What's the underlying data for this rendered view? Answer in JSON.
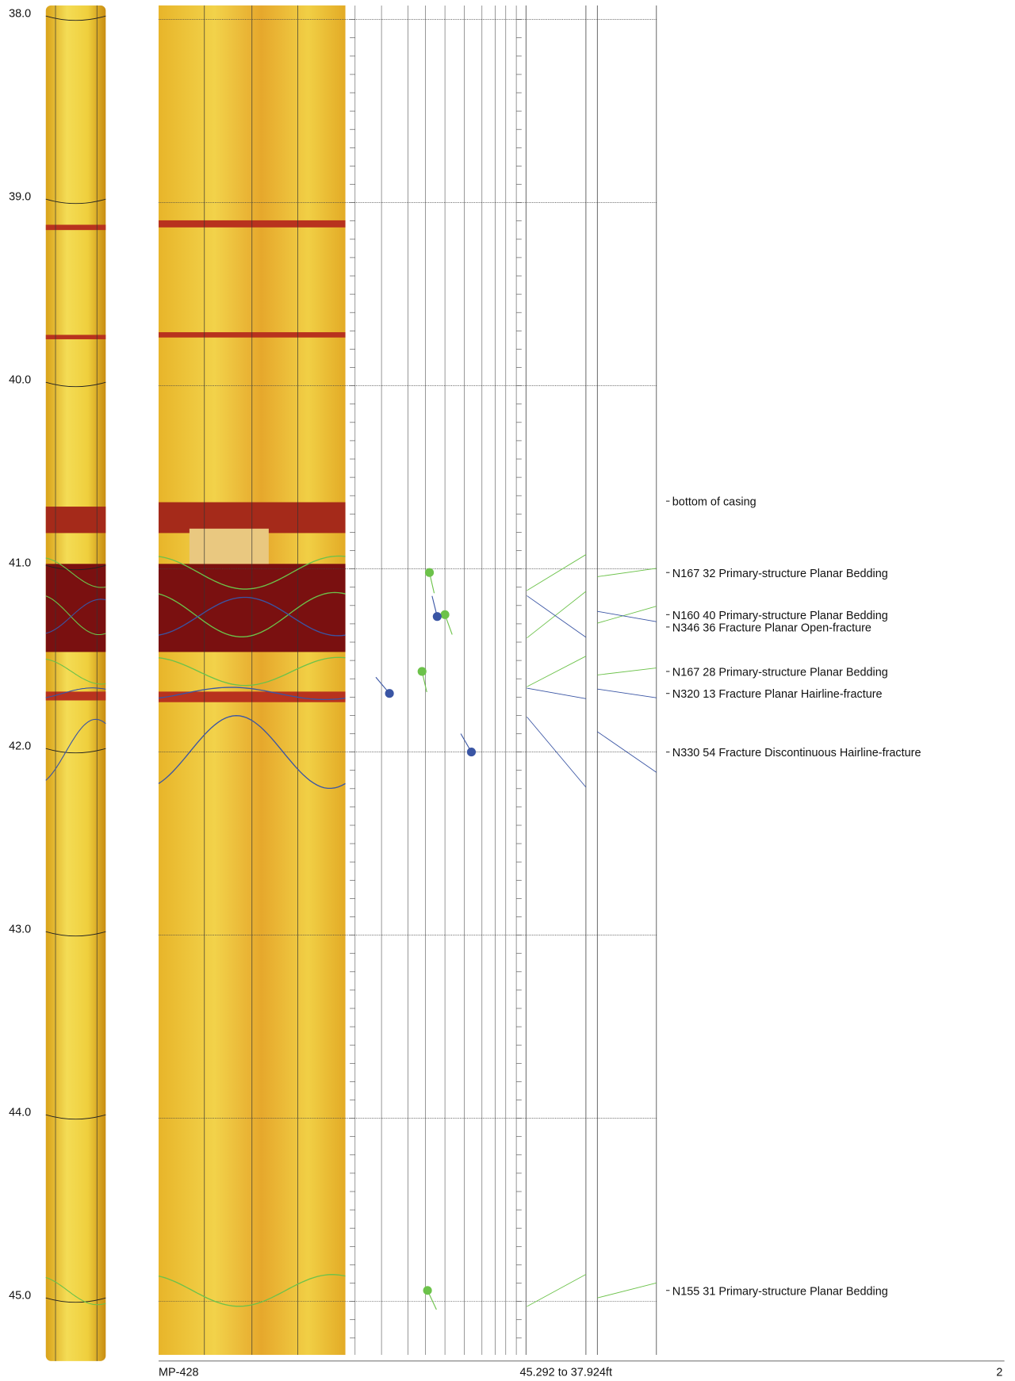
{
  "depth_axis": {
    "range": [
      37.924,
      45.292
    ],
    "ticks": [
      {
        "value": 38,
        "label": "38.0"
      },
      {
        "value": 39,
        "label": "39.0"
      },
      {
        "value": 40,
        "label": "40.0"
      },
      {
        "value": 41,
        "label": "41.0"
      },
      {
        "value": 42,
        "label": "42.0"
      },
      {
        "value": 43,
        "label": "43.0"
      },
      {
        "value": 44,
        "label": "44.0"
      },
      {
        "value": 45,
        "label": "45.0"
      }
    ]
  },
  "annotations": [
    {
      "depth": 40.63,
      "label": "bottom of casing"
    }
  ],
  "features": [
    {
      "depth": 41.02,
      "azimuth": 167,
      "dip": 32,
      "color": "#6cc24a",
      "label": "N167 32 Primary-structure Planar Bedding"
    },
    {
      "depth": 41.25,
      "azimuth": 160,
      "dip": 40,
      "color": "#6cc24a",
      "label": "N160 40 Primary-structure Planar Bedding"
    },
    {
      "depth": 41.26,
      "azimuth": 346,
      "dip": 36,
      "color": "#3a55a4",
      "label": "N346 36 Fracture Planar Open-fracture"
    },
    {
      "depth": 41.56,
      "azimuth": 167,
      "dip": 28,
      "color": "#6cc24a",
      "label": "N167 28 Primary-structure Planar Bedding"
    },
    {
      "depth": 41.68,
      "azimuth": 320,
      "dip": 13,
      "color": "#3a55a4",
      "label": "N320 13 Fracture Planar Hairline-fracture"
    },
    {
      "depth": 42.0,
      "azimuth": 330,
      "dip": 54,
      "color": "#3a55a4",
      "label": "N330 54 Fracture Discontinuous Hairline-fracture"
    },
    {
      "depth": 44.94,
      "azimuth": 155,
      "dip": 31,
      "color": "#6cc24a",
      "label": "N155 31 Primary-structure Planar Bedding"
    }
  ],
  "footer": {
    "well": "MP-428",
    "range": "45.292 to 37.924ft",
    "page": "2"
  }
}
